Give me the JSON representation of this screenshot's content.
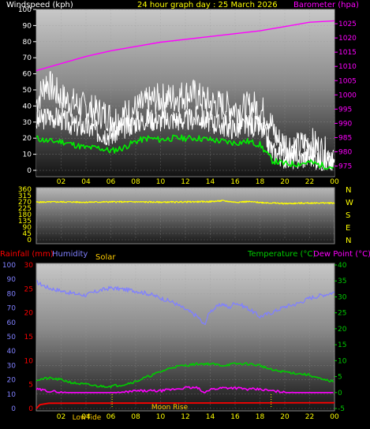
{
  "header": {
    "title": "24 hour graph day : 25 March 2026",
    "left_label": "Windspeed (kph)",
    "right_label": "Barometer (hpa)"
  },
  "colors": {
    "wind": "#ffffff",
    "gust": "#ffffff",
    "avg_wind": "#00ee00",
    "barometer": "#ff00ff",
    "direction": "#ffff00",
    "humidity": "#8080ff",
    "temperature": "#00cc00",
    "dew_point": "#ff00ff",
    "rainfall": "#ff0000",
    "solar": "#ffcc00",
    "title": "#ffff00"
  },
  "chart_data": [
    {
      "type": "line",
      "name": "wind-barometer",
      "x_ticks": [
        "02",
        "04",
        "06",
        "08",
        "10",
        "12",
        "14",
        "16",
        "18",
        "20",
        "22",
        "00"
      ],
      "left_axis": {
        "label": "Windspeed (kph)",
        "range": [
          0,
          100
        ],
        "ticks": [
          0,
          10,
          20,
          30,
          40,
          50,
          60,
          70,
          80,
          90,
          100
        ]
      },
      "right_axis": {
        "label": "Barometer (hpa)",
        "range": [
          973.5,
          1030
        ],
        "ticks": [
          975,
          980,
          985,
          990,
          995,
          1000,
          1005,
          1010,
          1015,
          1020,
          1025
        ]
      },
      "x_range": [
        0,
        24
      ],
      "series": [
        {
          "name": "Windspeed",
          "axis": "left",
          "color_key": "wind",
          "x": [
            0,
            1,
            2,
            3,
            4,
            5,
            6,
            7,
            8,
            9,
            10,
            11,
            12,
            13,
            14,
            15,
            16,
            17,
            18,
            18.5,
            19,
            20,
            21,
            22,
            23,
            24
          ],
          "y": [
            30,
            34,
            32,
            28,
            27,
            24,
            22,
            26,
            30,
            32,
            31,
            32,
            31,
            33,
            30,
            28,
            26,
            28,
            27,
            20,
            12,
            8,
            7,
            9,
            6,
            5
          ]
        },
        {
          "name": "Gust",
          "axis": "left",
          "color_key": "gust",
          "x": [
            0,
            0.8,
            2,
            3.5,
            5,
            6.5,
            8,
            9.5,
            11,
            12.5,
            13.5,
            15,
            16.5,
            17.5,
            18.5,
            19.5,
            21,
            22,
            23,
            24
          ],
          "y": [
            42,
            55,
            45,
            40,
            36,
            32,
            38,
            44,
            45,
            48,
            43,
            40,
            38,
            40,
            35,
            18,
            14,
            18,
            12,
            8
          ]
        },
        {
          "name": "Avg wind",
          "axis": "left",
          "color_key": "avg_wind",
          "x": [
            0,
            1,
            2,
            3,
            4,
            5,
            6,
            7,
            8,
            9,
            10,
            11,
            12,
            13,
            14,
            15,
            16,
            17,
            18,
            19,
            20,
            21,
            22,
            23,
            24
          ],
          "y": [
            20,
            18,
            18,
            16,
            14,
            14,
            12,
            14,
            18,
            20,
            19,
            20,
            20,
            20,
            19,
            18,
            17,
            18,
            16,
            6,
            4,
            4,
            5,
            3,
            2
          ]
        },
        {
          "name": "Barometer",
          "axis": "right",
          "color_key": "barometer",
          "x": [
            0,
            2,
            4,
            6,
            8,
            10,
            12,
            14,
            16,
            18,
            20,
            22,
            24
          ],
          "y": [
            1008.5,
            1011,
            1013.5,
            1015.5,
            1017,
            1018.5,
            1019.5,
            1020.5,
            1021.5,
            1022.5,
            1024,
            1025.5,
            1026
          ]
        }
      ]
    },
    {
      "type": "line",
      "name": "wind-direction",
      "left_axis": {
        "range": [
          0,
          360
        ],
        "ticks": [
          0,
          45,
          90,
          135,
          180,
          225,
          270,
          315,
          360
        ]
      },
      "right_labels": [
        "N",
        "W",
        "S",
        "E",
        "N"
      ],
      "x_range": [
        0,
        24
      ],
      "series": [
        {
          "name": "Direction",
          "color_key": "direction",
          "x": [
            0,
            2,
            4,
            6,
            8,
            10,
            12,
            14,
            15,
            16,
            17,
            18,
            19,
            20,
            22,
            24
          ],
          "y": [
            268,
            270,
            268,
            270,
            270,
            268,
            270,
            272,
            278,
            268,
            272,
            266,
            262,
            258,
            262,
            262
          ]
        }
      ]
    },
    {
      "type": "line",
      "name": "temp-humidity-rain",
      "legend": [
        "Rainfall (mm)",
        "Humidity",
        "Solar",
        "Temperature (°C)",
        "Dew Point (°C)"
      ],
      "x_ticks": [
        "02",
        "04",
        "06",
        "08",
        "10",
        "12",
        "14",
        "16",
        "18",
        "20",
        "22",
        "00"
      ],
      "left_axis_humidity": {
        "range": [
          0,
          100
        ],
        "ticks": [
          0,
          10,
          20,
          30,
          40,
          50,
          60,
          70,
          80,
          90,
          100
        ]
      },
      "left_axis_rain": {
        "range": [
          0,
          30
        ],
        "ticks": [
          0,
          5,
          10,
          15,
          20,
          25,
          30
        ]
      },
      "right_axis_temp": {
        "range": [
          -5,
          40
        ],
        "ticks": [
          -5,
          0,
          5,
          10,
          15,
          20,
          25,
          30,
          35,
          40
        ]
      },
      "markers": [
        "LowTide",
        "Moon Rise"
      ],
      "x_range": [
        0,
        24
      ],
      "series": [
        {
          "name": "Humidity",
          "axis": "humidity",
          "color_key": "humidity",
          "x": [
            0,
            0.5,
            1,
            2,
            3,
            4,
            5,
            6,
            7,
            8,
            9,
            10,
            11,
            12,
            13,
            13.5,
            14,
            15,
            15.5,
            16,
            17,
            18,
            19,
            20,
            21,
            22,
            23,
            24
          ],
          "y": [
            88,
            86,
            84,
            82,
            80,
            79,
            82,
            84,
            83,
            82,
            80,
            77,
            74,
            69,
            64,
            58,
            68,
            73,
            70,
            74,
            70,
            64,
            67,
            71,
            73,
            77,
            79,
            81
          ]
        },
        {
          "name": "Temperature",
          "axis": "temp",
          "color_key": "temperature",
          "x": [
            0,
            1,
            2,
            3,
            4,
            5,
            6,
            7,
            8,
            9,
            10,
            11,
            12,
            13,
            14,
            15,
            16,
            17,
            18,
            19,
            20,
            21,
            22,
            23,
            24
          ],
          "y": [
            4,
            4.5,
            4,
            3,
            2.5,
            2,
            2,
            2.5,
            3.5,
            5,
            6.5,
            8,
            8.5,
            9,
            9,
            8.5,
            9,
            9,
            8.5,
            7,
            6.5,
            6,
            5.5,
            4,
            3.5
          ]
        },
        {
          "name": "Dew Point",
          "axis": "temp",
          "color_key": "dew_point",
          "x": [
            0,
            1,
            2,
            3,
            4,
            5,
            6,
            7,
            8,
            9,
            10,
            11,
            12,
            13,
            13.5,
            14,
            15,
            16,
            17,
            18,
            19,
            20,
            21,
            22,
            23,
            24
          ],
          "y": [
            1,
            0.5,
            0,
            -0.5,
            -1,
            -1,
            -0.5,
            0,
            0.5,
            0.5,
            0.5,
            1,
            1.5,
            1.5,
            -0.5,
            1,
            1.5,
            1.5,
            1,
            1,
            0.5,
            0,
            -0.5,
            -0.5,
            -0.5,
            -0.5
          ]
        },
        {
          "name": "Rainfall",
          "axis": "rain",
          "color_key": "rainfall",
          "x": [
            0,
            0.3,
            1,
            24
          ],
          "y": [
            0,
            0.8,
            1.1,
            1.2
          ]
        }
      ]
    }
  ]
}
